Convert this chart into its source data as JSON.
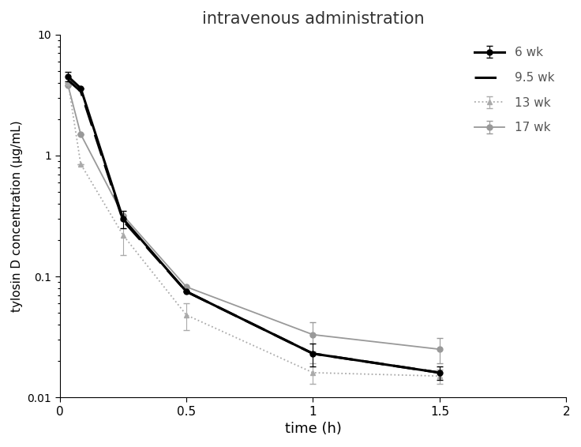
{
  "title": "intravenous administration",
  "xlabel": "time (h)",
  "ylabel": "tylosin D concentration (μg/mL)",
  "xlim": [
    0,
    2
  ],
  "ylim": [
    0.01,
    10
  ],
  "xticks": [
    0,
    0.5,
    1.0,
    1.5,
    2.0
  ],
  "xtick_labels": [
    "0",
    "0.5",
    "1",
    "1.5",
    "2"
  ],
  "series": [
    {
      "label": "6 wk",
      "x": [
        0.033,
        0.083,
        0.25,
        0.5,
        1.0,
        1.5
      ],
      "y": [
        4.5,
        3.6,
        0.3,
        0.075,
        0.023,
        0.016
      ],
      "yerr_lo": [
        0.4,
        0,
        0.05,
        0,
        0.005,
        0.002
      ],
      "yerr_hi": [
        0.4,
        0,
        0.05,
        0,
        0.005,
        0.002
      ],
      "color": "#000000",
      "linestyle": "solid",
      "marker": "o",
      "markersize": 5,
      "linewidth": 2.2,
      "dashes": null,
      "zorder": 5
    },
    {
      "label": "9.5 wk",
      "x": [
        0.033,
        0.083,
        0.25,
        0.5,
        1.0,
        1.5
      ],
      "y": [
        4.2,
        3.4,
        0.29,
        0.075,
        0.023,
        0.016
      ],
      "yerr_lo": [
        0,
        0,
        0,
        0,
        0,
        0
      ],
      "yerr_hi": [
        0,
        0,
        0,
        0,
        0,
        0
      ],
      "color": "#000000",
      "linestyle": "dashed",
      "marker": null,
      "markersize": 0,
      "linewidth": 2.2,
      "dashes": [
        9,
        4
      ],
      "zorder": 4
    },
    {
      "label": "13 wk",
      "x": [
        0.033,
        0.083,
        0.25,
        0.5,
        1.0,
        1.5
      ],
      "y": [
        4.0,
        0.85,
        0.22,
        0.048,
        0.016,
        0.015
      ],
      "yerr_lo": [
        0,
        0,
        0.07,
        0.012,
        0.003,
        0.002
      ],
      "yerr_hi": [
        0,
        0,
        0.07,
        0.012,
        0.003,
        0.002
      ],
      "color": "#aaaaaa",
      "linestyle": "dotted",
      "marker": "^",
      "markersize": 5,
      "linewidth": 1.3,
      "dashes": null,
      "zorder": 3
    },
    {
      "label": "17 wk",
      "x": [
        0.033,
        0.083,
        0.25,
        0.5,
        1.0,
        1.5
      ],
      "y": [
        3.8,
        1.5,
        0.32,
        0.082,
        0.033,
        0.025
      ],
      "yerr_lo": [
        0,
        0,
        0,
        0,
        0.009,
        0.006
      ],
      "yerr_hi": [
        0,
        0,
        0,
        0,
        0.009,
        0.006
      ],
      "color": "#999999",
      "linestyle": "solid",
      "marker": "o",
      "markersize": 5,
      "linewidth": 1.3,
      "dashes": null,
      "zorder": 2
    }
  ]
}
